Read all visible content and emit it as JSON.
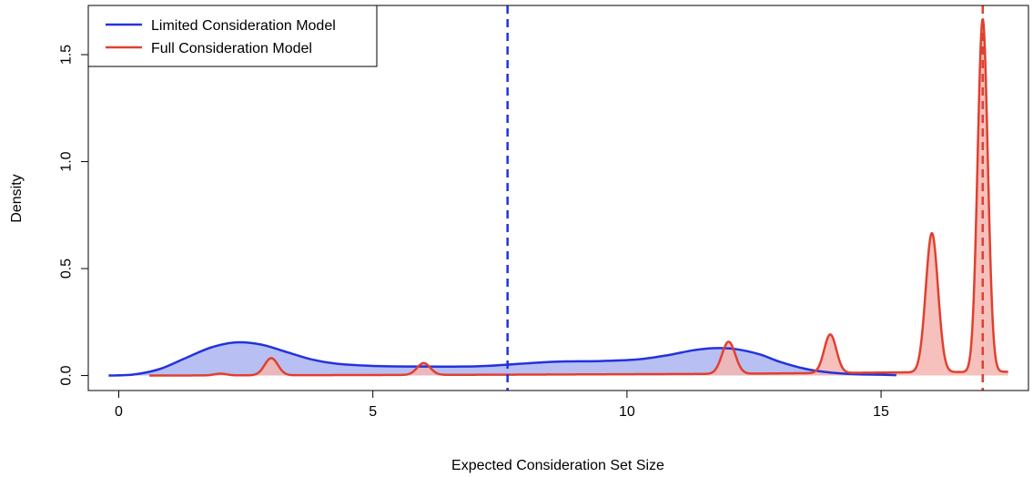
{
  "chart_data": {
    "type": "area",
    "title": "",
    "xlabel": "Expected Consideration Set Size",
    "ylabel": "Density",
    "xlim": [
      -0.6,
      17.9
    ],
    "ylim": [
      -0.07,
      1.73
    ],
    "x_ticks": [
      0,
      5,
      10,
      15
    ],
    "y_ticks": [
      0.0,
      0.5,
      1.0,
      1.5
    ],
    "x_tick_labels": [
      "0",
      "5",
      "10",
      "15"
    ],
    "y_tick_labels": [
      "0.0",
      "0.5",
      "1.0",
      "1.5"
    ],
    "grid": false,
    "legend": {
      "position": "top-left"
    },
    "series": [
      {
        "name": "Limited Consideration Model",
        "color": "#2233dd",
        "fill": "#b8bff2",
        "points": [
          [
            -0.2,
            0.0
          ],
          [
            0.3,
            0.005
          ],
          [
            0.8,
            0.03
          ],
          [
            1.3,
            0.08
          ],
          [
            1.8,
            0.13
          ],
          [
            2.3,
            0.155
          ],
          [
            2.8,
            0.145
          ],
          [
            3.3,
            0.11
          ],
          [
            3.8,
            0.075
          ],
          [
            4.3,
            0.055
          ],
          [
            5.0,
            0.045
          ],
          [
            6.0,
            0.042
          ],
          [
            7.0,
            0.043
          ],
          [
            7.6,
            0.05
          ],
          [
            8.2,
            0.06
          ],
          [
            8.8,
            0.066
          ],
          [
            9.5,
            0.068
          ],
          [
            10.2,
            0.075
          ],
          [
            10.8,
            0.095
          ],
          [
            11.3,
            0.118
          ],
          [
            11.7,
            0.128
          ],
          [
            12.1,
            0.125
          ],
          [
            12.6,
            0.1
          ],
          [
            13.0,
            0.065
          ],
          [
            13.5,
            0.032
          ],
          [
            14.0,
            0.014
          ],
          [
            14.5,
            0.006
          ],
          [
            15.0,
            0.004
          ],
          [
            15.3,
            0.002
          ]
        ],
        "vline": 7.65
      },
      {
        "name": "Full Consideration Model",
        "color": "#e04030",
        "fill": "#f5b5b0",
        "baseline": [
          [
            0.6,
            0.0
          ],
          [
            7.6,
            0.004
          ],
          [
            12.0,
            0.008
          ],
          [
            15.5,
            0.015
          ],
          [
            17.5,
            0.018
          ]
        ],
        "peaks": [
          {
            "x": 2.0,
            "height": 0.008,
            "width": 0.12
          },
          {
            "x": 3.0,
            "height": 0.08,
            "width": 0.13
          },
          {
            "x": 6.0,
            "height": 0.055,
            "width": 0.13
          },
          {
            "x": 12.0,
            "height": 0.15,
            "width": 0.13
          },
          {
            "x": 14.0,
            "height": 0.18,
            "width": 0.12
          },
          {
            "x": 16.0,
            "height": 0.65,
            "width": 0.12
          },
          {
            "x": 17.0,
            "height": 1.65,
            "width": 0.1
          }
        ],
        "vline": 17.0
      }
    ]
  }
}
